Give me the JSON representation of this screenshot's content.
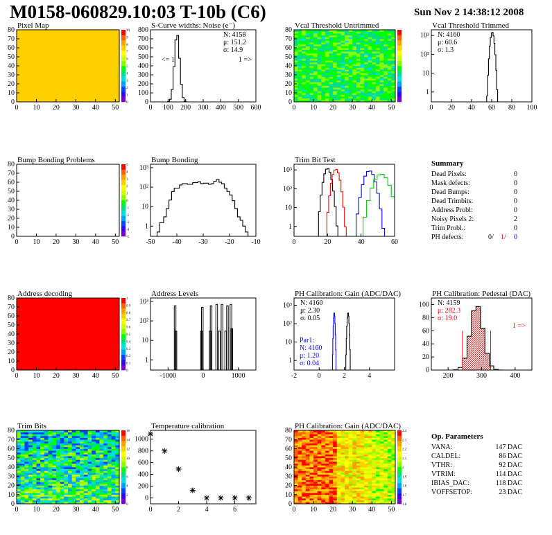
{
  "page": {
    "title": "M0158-060829.10:03 T-10b (C6)",
    "date": "Sun Nov  2 14:38:12 2008"
  },
  "colors": {
    "black": "#000000",
    "red": "#ff0000",
    "green": "#00cc00",
    "blue": "#0000ff",
    "palette": [
      "#7700c8",
      "#3300ff",
      "#0044ff",
      "#00a0ff",
      "#00e0e0",
      "#00dd88",
      "#00ff00",
      "#88ff00",
      "#ccff00",
      "#ffff00",
      "#ffd000",
      "#ffa000",
      "#ff6000",
      "#ff0000"
    ]
  },
  "chart_data": [
    {
      "id": "pixel-map",
      "type": "heatmap",
      "title": "Pixel Map",
      "xlim": [
        0,
        52
      ],
      "ylim": [
        0,
        80
      ],
      "xticks": [
        "0",
        "10",
        "20",
        "30",
        "40",
        "50"
      ],
      "yticks": [
        "0",
        "10",
        "20",
        "30",
        "40",
        "50",
        "60",
        "70",
        "80"
      ],
      "zlim": [
        0,
        10
      ],
      "zticks": [
        "0",
        "1",
        "2",
        "3",
        "4",
        "5",
        "6",
        "7",
        "8",
        "9",
        "10"
      ],
      "fill": "uniform",
      "level": 10
    },
    {
      "id": "scurve-noise",
      "type": "histogram",
      "title": "S-Curve widths: Noise (e⁻)",
      "xlim": [
        0,
        600
      ],
      "ylim": [
        0,
        800
      ],
      "log": false,
      "xticks": [
        "0",
        "100",
        "200",
        "300",
        "400",
        "500",
        "600"
      ],
      "yticks": [
        "0",
        "100",
        "200",
        "300",
        "400",
        "500",
        "600",
        "700",
        "800"
      ],
      "stats": [
        "N: 4158",
        "μ: 151.2",
        "σ: 14.9"
      ],
      "annotations": [
        "<= 1",
        "1 =>"
      ],
      "series": [
        {
          "color": "black",
          "peak": 151.2,
          "sigma": 14.9,
          "height": 760
        }
      ]
    },
    {
      "id": "vcal-untrimmed",
      "type": "heatmap",
      "title": "Vcal Threshold Untrimmed",
      "xlim": [
        0,
        52
      ],
      "ylim": [
        0,
        80
      ],
      "xticks": [
        "0",
        "10",
        "20",
        "30",
        "40",
        "50"
      ],
      "yticks": [
        "0",
        "10",
        "20",
        "30",
        "40",
        "50",
        "60",
        "70",
        "80"
      ],
      "zlim": [
        0,
        14
      ],
      "zticks": [],
      "fill": "noise-green",
      "level": 7
    },
    {
      "id": "vcal-trimmed",
      "type": "histogram",
      "title": "Vcal Threshold Trimmed",
      "xlim": [
        0,
        100
      ],
      "log": true,
      "ylog": [
        0.3,
        2000
      ],
      "xticks": [
        "0",
        "20",
        "40",
        "60",
        "80",
        "100"
      ],
      "yticks": [
        "1",
        "10",
        "10²",
        "10³"
      ],
      "stats": [
        "N: 4160",
        "μ: 60.6",
        "σ: 1.3"
      ],
      "series": [
        {
          "color": "black",
          "peak": 60.6,
          "sigma": 1.3,
          "height": 1500
        }
      ]
    },
    {
      "id": "bump-bonding-problems",
      "type": "heatmap",
      "title": "Bump Bonding Problems",
      "xlim": [
        0,
        52
      ],
      "ylim": [
        0,
        80
      ],
      "xticks": [
        "0",
        "10",
        "20",
        "30",
        "40",
        "50"
      ],
      "yticks": [
        "0",
        "10",
        "20",
        "30",
        "40",
        "50",
        "60",
        "70",
        "80"
      ],
      "zlim": [
        -5,
        5
      ],
      "zticks": [
        "-5",
        "-4",
        "-3",
        "-2",
        "-1",
        "0",
        "1",
        "2",
        "3",
        "4",
        "5"
      ],
      "fill": "empty"
    },
    {
      "id": "bump-bonding",
      "type": "histogram",
      "title": "Bump Bonding",
      "xlim": [
        -50,
        -10
      ],
      "log": true,
      "ylog": [
        0.3,
        1500
      ],
      "xticks": [
        "-50",
        "-40",
        "-30",
        "-20",
        "-10"
      ],
      "yticks": [
        "1",
        "10",
        "10²",
        "10³"
      ],
      "bins": [
        [
          -47.5,
          -46.5,
          0.5
        ],
        [
          -46.5,
          -45,
          1.5
        ],
        [
          -45,
          -44,
          3
        ],
        [
          -44,
          -43,
          8
        ],
        [
          -43,
          -42,
          22
        ],
        [
          -42,
          -41,
          60
        ],
        [
          -41,
          -39,
          90
        ],
        [
          -39,
          -38,
          130
        ],
        [
          -38,
          -36,
          150
        ],
        [
          -36,
          -34,
          140
        ],
        [
          -34,
          -32,
          170
        ],
        [
          -32,
          -31,
          190
        ],
        [
          -31,
          -30,
          150
        ],
        [
          -30,
          -28,
          160
        ],
        [
          -28,
          -27,
          140
        ],
        [
          -27,
          -26,
          150
        ],
        [
          -26,
          -25,
          200
        ],
        [
          -25,
          -24,
          250
        ],
        [
          -24,
          -23,
          180
        ],
        [
          -23,
          -22,
          150
        ],
        [
          -22,
          -21,
          90
        ],
        [
          -21,
          -20,
          60
        ],
        [
          -20,
          -19,
          40
        ],
        [
          -19,
          -18,
          20
        ],
        [
          -18,
          -17,
          8
        ],
        [
          -17,
          -16,
          3
        ],
        [
          -16,
          -15,
          2
        ],
        [
          -15,
          -14,
          1
        ],
        [
          -14,
          -13,
          0.5
        ]
      ]
    },
    {
      "id": "trim-bit-test",
      "type": "histogram",
      "title": "Trim Bit Test",
      "xlim": [
        0,
        60
      ],
      "log": true,
      "ylog": [
        0.3,
        2000
      ],
      "xticks": [
        "0",
        "20",
        "40",
        "60"
      ],
      "yticks": [
        "1",
        "10",
        "10²",
        "10³"
      ],
      "series": [
        {
          "color": "black",
          "peak": 20,
          "sigma": 1.5,
          "height": 1200
        },
        {
          "color": "red",
          "peak": 25,
          "sigma": 1.5,
          "height": 1100
        },
        {
          "color": "blue",
          "peak": 45,
          "sigma": 2.2,
          "height": 900
        },
        {
          "color": "green",
          "peak": 52,
          "sigma": 3.0,
          "height": 600
        }
      ]
    },
    {
      "id": "address-decoding",
      "type": "heatmap",
      "title": "Address decoding",
      "xlim": [
        0,
        52
      ],
      "ylim": [
        0,
        80
      ],
      "xticks": [
        "0",
        "10",
        "20",
        "30",
        "40",
        "50"
      ],
      "yticks": [
        "0",
        "10",
        "20",
        "30",
        "40",
        "50",
        "60",
        "70",
        "80"
      ],
      "zlim": [
        0,
        1
      ],
      "zticks": [
        "0",
        "0.1",
        "0.2",
        "0.3",
        "0.4",
        "0.5",
        "0.6",
        "0.7",
        "0.8",
        "0.9",
        "1"
      ],
      "fill": "uniform",
      "level": 13
    },
    {
      "id": "address-levels",
      "type": "histogram",
      "title": "Address Levels",
      "xlim": [
        -1500,
        1500
      ],
      "log": true,
      "ylog": [
        0.3,
        1500
      ],
      "xticks": [
        "-1000",
        "0",
        "1000"
      ],
      "yticks": [
        "1",
        "10",
        "10²",
        "10³"
      ],
      "spikes": [
        [
          -800,
          600
        ],
        [
          -775,
          30
        ],
        [
          -50,
          30
        ],
        [
          -25,
          500
        ],
        [
          200,
          30
        ],
        [
          225,
          600
        ],
        [
          385,
          700
        ],
        [
          460,
          30
        ],
        [
          535,
          700
        ],
        [
          640,
          30
        ],
        [
          690,
          600
        ],
        [
          790,
          700
        ],
        [
          815,
          40
        ]
      ]
    },
    {
      "id": "ph-calibration-gain",
      "type": "histogram",
      "title": "PH Calibration: Gain (ADC/DAC)",
      "xlim": [
        -2,
        6
      ],
      "log": true,
      "ylog": [
        0.3,
        2500
      ],
      "xticks": [
        "-2",
        "0",
        "2",
        "4"
      ],
      "yticks": [
        "1",
        "10",
        "10²",
        "10³"
      ],
      "stats": [
        "N: 4160",
        "μ: 2.30",
        "σ: 0.05"
      ],
      "stats2_title": "Par1:",
      "stats2": [
        "N: 4160",
        "μ: 1.20",
        "σ: 0.04"
      ],
      "series": [
        {
          "color": "black",
          "peak": 2.3,
          "sigma": 0.05,
          "height": 400
        },
        {
          "color": "blue",
          "peak": 1.2,
          "sigma": 0.04,
          "height": 400
        }
      ]
    },
    {
      "id": "ph-calibration-pedestal",
      "type": "histogram",
      "title": "PH Calibration: Pedestal (DAC)",
      "xlim": [
        150,
        450
      ],
      "ylim": [
        0,
        110
      ],
      "log": false,
      "xticks": [
        "200",
        "300",
        "400"
      ],
      "yticks": [
        "0",
        "20",
        "40",
        "60",
        "80",
        "100"
      ],
      "stats": [
        "N: 4159",
        "μ: 282.3",
        "σ: 19.0"
      ],
      "annotations": [
        "1 =>"
      ],
      "series": [
        {
          "color": "black",
          "peak": 285,
          "sigma": 19,
          "height": 100
        }
      ],
      "cut_lines": [
        243,
        327
      ]
    },
    {
      "id": "trim-bits",
      "type": "heatmap",
      "title": "Trim Bits",
      "xlim": [
        0,
        52
      ],
      "ylim": [
        0,
        80
      ],
      "xticks": [
        "0",
        "10",
        "20",
        "30",
        "40",
        "50"
      ],
      "yticks": [
        "0",
        "10",
        "20",
        "30",
        "40",
        "50",
        "60",
        "70",
        "80"
      ],
      "zlim": [
        0,
        16
      ],
      "zticks": [
        "0",
        "2",
        "4",
        "6",
        "8",
        "10",
        "12",
        "14",
        "16"
      ],
      "fill": "noise-trim"
    },
    {
      "id": "temperature-calibration",
      "type": "scatter",
      "title": "Temperature calibration",
      "xlim": [
        0,
        7.5
      ],
      "ylim": [
        -100,
        1150
      ],
      "xticks": [
        "0",
        "2",
        "4",
        "6"
      ],
      "yticks": [
        "0",
        "200",
        "400",
        "600",
        "800",
        "1000"
      ],
      "x": [
        0,
        1,
        2,
        3,
        4,
        5,
        6,
        7
      ],
      "y": [
        1090,
        800,
        490,
        130,
        0,
        0,
        0,
        0
      ]
    },
    {
      "id": "ph-gain-map",
      "type": "heatmap",
      "title": "PH Calibration: Gain (ADC/DAC)",
      "xlim": [
        0,
        52
      ],
      "ylim": [
        0,
        80
      ],
      "xticks": [
        "0",
        "10",
        "20",
        "30",
        "40",
        "50"
      ],
      "yticks": [
        "0",
        "10",
        "20",
        "30",
        "40",
        "50",
        "60",
        "70",
        "80"
      ],
      "zlim": [
        1.6,
        2.4
      ],
      "zticks": [
        "1.6",
        "1.7",
        "1.8",
        "1.9",
        "2",
        "2.1",
        "2.2",
        "2.3",
        "2.4"
      ],
      "fill": "noise-gain"
    }
  ],
  "summary": {
    "title": "Summary",
    "rows": [
      {
        "label": "Dead Pixels:",
        "value": "0"
      },
      {
        "label": "Mask defects:",
        "value": "0"
      },
      {
        "label": "Dead Bumps:",
        "value": "0"
      },
      {
        "label": "Dead Trimbits:",
        "value": "0"
      },
      {
        "label": "Address Probl:",
        "value": "0"
      },
      {
        "label": "Noisy Pixels 2:",
        "value": "2"
      },
      {
        "label": "Trim Probl.:",
        "value": "0"
      }
    ],
    "ph_label": "PH defects:",
    "ph_values": [
      "0/",
      "1/",
      "0"
    ]
  },
  "parameters": {
    "title": "Op. Parameters",
    "rows": [
      {
        "label": "VANA:",
        "value": "147 DAC"
      },
      {
        "label": "CALDEL:",
        "value": "86 DAC"
      },
      {
        "label": "VTHR:",
        "value": "92 DAC"
      },
      {
        "label": "VTRIM:",
        "value": "114 DAC"
      },
      {
        "label": "IBIAS_DAC:",
        "value": "118 DAC"
      },
      {
        "label": "VOFFSETOP:",
        "value": "23 DAC"
      }
    ]
  }
}
